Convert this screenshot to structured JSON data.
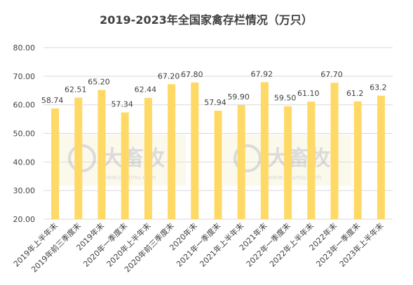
{
  "chart_data": {
    "type": "bar",
    "title": "2019-2023年全国家禽存栏情况（万只）",
    "categories": [
      "2019年上半年末",
      "2019年前三季度末",
      "2019年末",
      "2020年一季度末",
      "2020年上半年末",
      "2020年前三季度末",
      "2020年末",
      "2021年一季度末",
      "2021年上半年末",
      "2021年末",
      "2022年一季度末",
      "2022年上半年末",
      "2022年末",
      "2023年一季度末",
      "2023年上半年末"
    ],
    "values": [
      58.74,
      62.51,
      65.2,
      57.34,
      62.44,
      67.2,
      67.8,
      57.94,
      59.9,
      67.92,
      59.5,
      61.1,
      67.7,
      61.2,
      63.2
    ],
    "value_labels": [
      "58.74",
      "62.51",
      "65.20",
      "57.34",
      "62.44",
      "67.20",
      "67.80",
      "57.94",
      "59.90",
      "67.92",
      "59.50",
      "61.10",
      "67.70",
      "61.2",
      "63.2"
    ],
    "color": "#ffd966",
    "ylim": [
      20,
      80
    ],
    "yticks": [
      {
        "value": 20,
        "label": "20.00"
      },
      {
        "value": 30,
        "label": "30.00"
      },
      {
        "value": 40,
        "label": "40.00"
      },
      {
        "value": 50,
        "label": "50.00"
      },
      {
        "value": 60,
        "label": "60.00"
      },
      {
        "value": 70,
        "label": "70.00"
      },
      {
        "value": 80,
        "label": "80.00"
      }
    ],
    "grid": true,
    "watermark": {
      "name": "大畜牧",
      "url": "www.dxumu.com"
    }
  }
}
